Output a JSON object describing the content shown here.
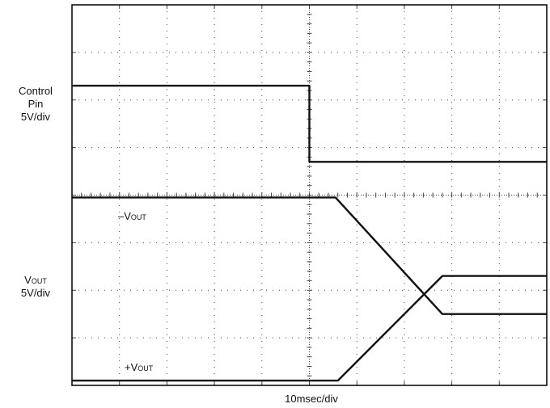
{
  "axes": {
    "control_label_line1": "Control",
    "control_label_line2": "Pin",
    "control_label_line3": "5V/div",
    "vout_label_line1": "Vout",
    "vout_label_line2": "5V/div",
    "time_label": "10msec/div"
  },
  "trace_labels": {
    "neg_vout_prefix": "–",
    "neg_vout_name": "Vout",
    "pos_vout_prefix": "+",
    "pos_vout_name": "Vout"
  },
  "chart_data": {
    "type": "line",
    "xlabel": "10msec/div",
    "ylabel": "Control Pin 5V/div; Vout 5V/div",
    "grid": true,
    "divisions": {
      "x": 10,
      "y": 8
    },
    "xlim": [
      0,
      10
    ],
    "ylim": [
      0,
      8
    ],
    "series": [
      {
        "name": "Control Pin",
        "x": [
          0,
          5.0,
          5.0,
          10
        ],
        "y": [
          6.3,
          6.3,
          4.7,
          4.7
        ]
      },
      {
        "name": "–Vout",
        "x": [
          0,
          5.55,
          7.8,
          10
        ],
        "y": [
          3.95,
          3.95,
          1.5,
          1.5
        ]
      },
      {
        "name": "+Vout",
        "x": [
          0,
          5.6,
          7.8,
          10
        ],
        "y": [
          0.1,
          0.1,
          2.3,
          2.3
        ]
      }
    ]
  }
}
